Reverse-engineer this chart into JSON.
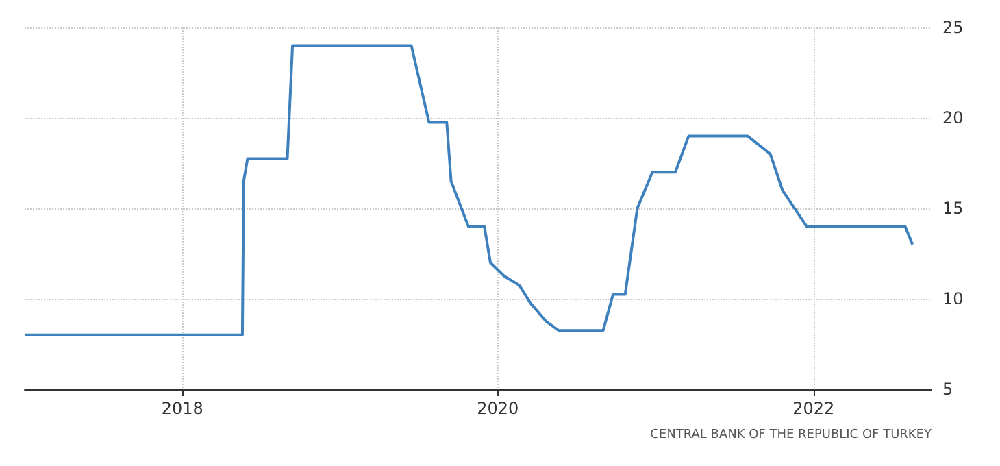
{
  "chart_data": {
    "type": "line",
    "x": [
      "2017-01-01",
      "2018-05-20",
      "2018-05-23",
      "2018-06-01",
      "2018-09-01",
      "2018-09-13",
      "2019-06-15",
      "2019-07-26",
      "2019-09-05",
      "2019-09-15",
      "2019-10-25",
      "2019-12-01",
      "2019-12-15",
      "2020-01-16",
      "2020-02-20",
      "2020-03-17",
      "2020-04-22",
      "2020-05-21",
      "2020-09-01",
      "2020-09-24",
      "2020-10-22",
      "2020-11-19",
      "2020-12-24",
      "2021-02-15",
      "2021-03-18",
      "2021-08-01",
      "2021-09-23",
      "2021-10-21",
      "2021-11-18",
      "2021-12-16",
      "2022-08-01",
      "2022-08-18"
    ],
    "series": [
      {
        "color": "#3d80bd",
        "values": [
          8,
          8,
          16.5,
          17.75,
          17.75,
          24,
          24,
          19.75,
          19.75,
          16.5,
          14,
          14,
          12,
          11.25,
          10.75,
          9.75,
          8.75,
          8.25,
          8.25,
          10.25,
          10.25,
          15,
          17,
          17,
          19,
          19,
          18,
          16,
          15,
          14,
          14,
          13
        ]
      }
    ],
    "xlim": [
      "2017-01-01",
      "2022-10-01"
    ],
    "xticks": [
      {
        "value": "2018-01-01",
        "label": "2018"
      },
      {
        "value": "2020-01-01",
        "label": "2020"
      },
      {
        "value": "2022-01-01",
        "label": "2022"
      }
    ],
    "ylim": [
      5,
      25
    ],
    "yticks": [
      5,
      10,
      15,
      20,
      25
    ],
    "grid": true,
    "marker": "none",
    "line_style": "solid",
    "annotations": [
      "CENTRAL BANK OF THE REPUBLIC OF TURKEY"
    ]
  }
}
